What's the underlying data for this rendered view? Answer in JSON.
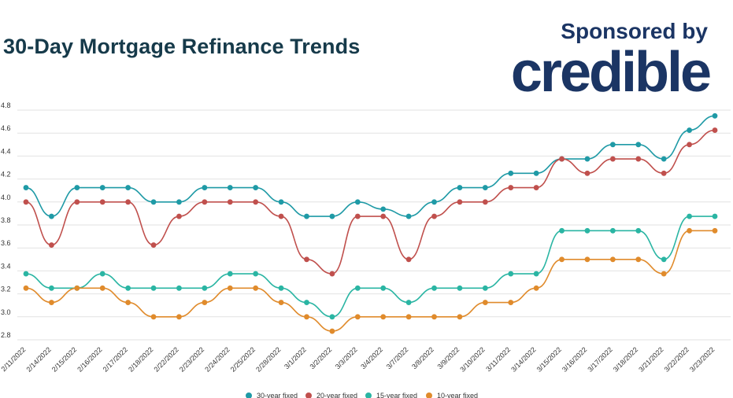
{
  "header": {
    "title": "30-Day Mortgage Refinance Trends",
    "sponsor_label": "Sponsored by",
    "sponsor_brand": "credible"
  },
  "colors": {
    "background": "#ffffff",
    "title": "#163a4a",
    "brand": "#1b3564",
    "grid": "#e2e2e2",
    "axis_text": "#333333"
  },
  "chart_data": {
    "type": "line",
    "x": [
      "2/11/2022",
      "2/14/2022",
      "2/15/2022",
      "2/16/2022",
      "2/17/2022",
      "2/18/2022",
      "2/22/2022",
      "2/23/2022",
      "2/24/2022",
      "2/25/2022",
      "2/28/2022",
      "3/1/2022",
      "3/2/2022",
      "3/3/2022",
      "3/4/2022",
      "3/7/2022",
      "3/8/2022",
      "3/9/2022",
      "3/10/2022",
      "3/11/2022",
      "3/14/2022",
      "3/15/2022",
      "3/16/2022",
      "3/17/2022",
      "3/18/2022",
      "3/21/2022",
      "3/22/2022",
      "3/23/2022"
    ],
    "y_ticks": [
      "2.8",
      "3.0",
      "3.2",
      "3.4",
      "3.6",
      "3.8",
      "4.0",
      "4.2",
      "4.4",
      "4.6",
      "4.8"
    ],
    "ylim": [
      2.8,
      4.8
    ],
    "grid": true,
    "legend_position": "bottom",
    "series": [
      {
        "name": "30-year fixed",
        "color": "#1f9aa6",
        "values": [
          4.125,
          3.875,
          4.125,
          4.125,
          4.125,
          4.0,
          4.0,
          4.125,
          4.125,
          4.125,
          4.0,
          3.875,
          3.875,
          4.0,
          3.938,
          3.875,
          4.0,
          4.125,
          4.125,
          4.25,
          4.25,
          4.375,
          4.375,
          4.5,
          4.5,
          4.375,
          4.625,
          4.75
        ]
      },
      {
        "name": "20-year fixed",
        "color": "#c0504d",
        "values": [
          4.0,
          3.625,
          4.0,
          4.0,
          4.0,
          3.625,
          3.875,
          4.0,
          4.0,
          4.0,
          3.875,
          3.5,
          3.375,
          3.875,
          3.875,
          3.5,
          3.875,
          4.0,
          4.0,
          4.125,
          4.125,
          4.375,
          4.25,
          4.375,
          4.375,
          4.25,
          4.5,
          4.625
        ]
      },
      {
        "name": "15-year fixed",
        "color": "#2ab5a3",
        "values": [
          3.375,
          3.25,
          3.25,
          3.375,
          3.25,
          3.25,
          3.25,
          3.25,
          3.375,
          3.375,
          3.25,
          3.125,
          3.0,
          3.25,
          3.25,
          3.125,
          3.25,
          3.25,
          3.25,
          3.375,
          3.375,
          3.75,
          3.75,
          3.75,
          3.75,
          3.5,
          3.875,
          3.875
        ]
      },
      {
        "name": "10-year fixed",
        "color": "#e08b2c",
        "values": [
          3.25,
          3.125,
          3.25,
          3.25,
          3.125,
          3.0,
          3.0,
          3.125,
          3.25,
          3.25,
          3.125,
          3.0,
          2.875,
          3.0,
          3.0,
          3.0,
          3.0,
          3.0,
          3.125,
          3.125,
          3.25,
          3.5,
          3.5,
          3.5,
          3.5,
          3.375,
          3.75,
          3.75
        ]
      }
    ]
  }
}
